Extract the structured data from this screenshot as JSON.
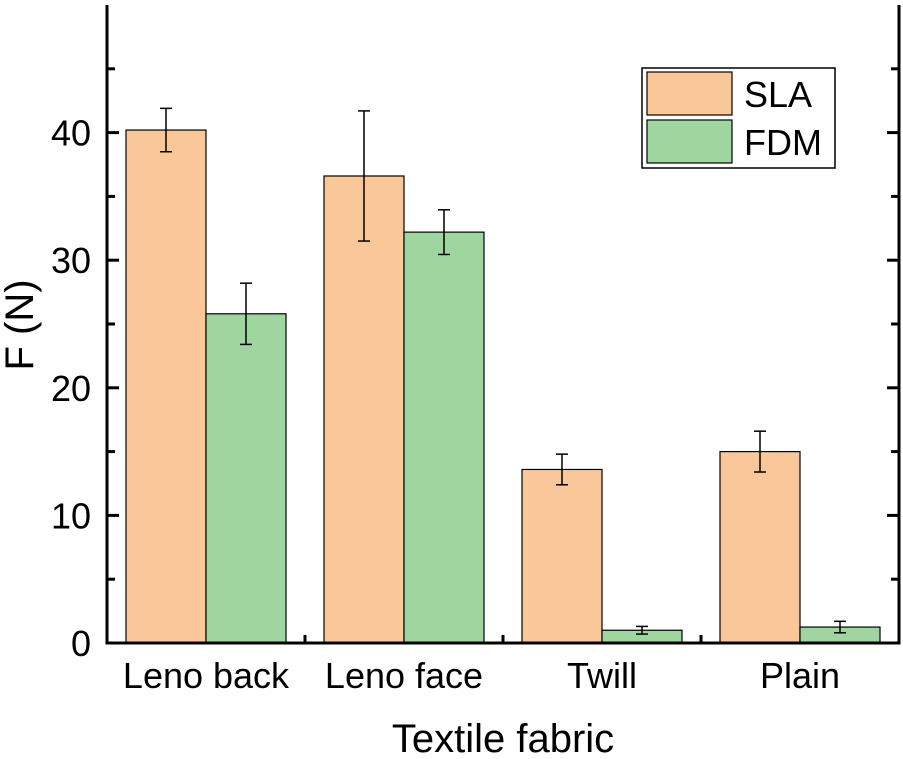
{
  "chart_data": {
    "type": "bar",
    "title": "",
    "xlabel": "Textile fabric",
    "ylabel": "F (N)",
    "categories": [
      "Leno back",
      "Leno face",
      "Twill",
      "Plain"
    ],
    "ylim": [
      0,
      50
    ],
    "yticks": [
      0,
      10,
      20,
      30,
      40
    ],
    "grid": false,
    "legend_position": "top-right",
    "series": [
      {
        "name": "SLA",
        "color": "#FAC898",
        "values": [
          40.2,
          36.6,
          13.6,
          15.0
        ],
        "errors": [
          1.7,
          5.1,
          1.2,
          1.6
        ]
      },
      {
        "name": "FDM",
        "color": "#9FD69F",
        "values": [
          25.8,
          32.2,
          1.0,
          1.25
        ],
        "errors": [
          2.4,
          1.75,
          0.3,
          0.45
        ]
      }
    ]
  }
}
